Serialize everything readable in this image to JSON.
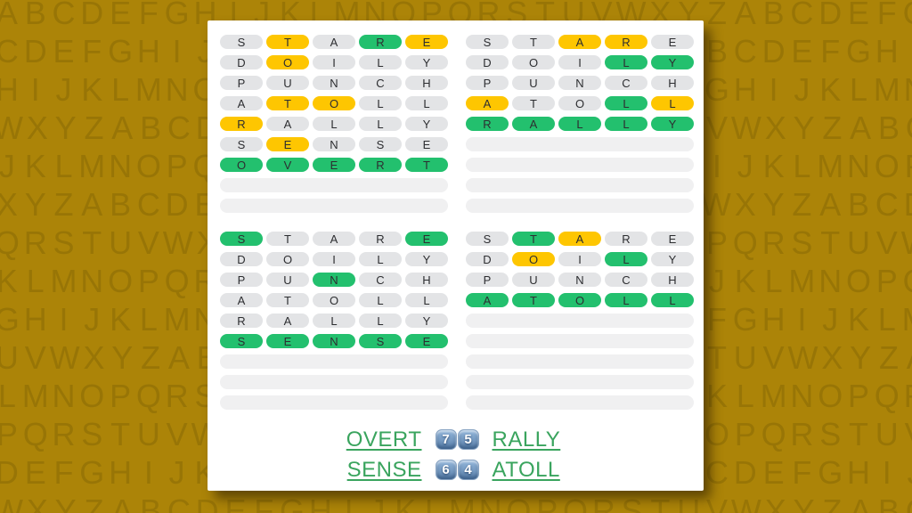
{
  "colors": {
    "page_bg": "#ac8408",
    "bg_letter": "rgba(50,45,0,0.16)",
    "card_bg": "#ffffff",
    "tile_absent_bg": "#e3e4e6",
    "tile_present_bg": "#fec601",
    "tile_correct_bg": "#23c06e",
    "tile_letter": "#2d2e31",
    "empty_row_bg": "#f0f0f1",
    "link_green": "#3aa45e",
    "keycap_blue_top": "#93b6da",
    "keycap_blue_bottom": "#5d83ad",
    "keycap_number": "#ffffff"
  },
  "background_letter_rows": [
    "ABCDEFGHIJKLMNOPQRSTUVWXYZABCDEFG",
    "CDEFGHIJKLMNOPQRSTUVWXYZABCDEFGHI",
    "HIJKLMNOPQRSTUVWXYZABCDEFGHIJKLMN",
    "WXYZABCDEFGHIJKLMNOPQRSTUVWXYZABC",
    "JKLMNOPQRSTUVWXYZABCDEFGHIJKLMNOP",
    "XYZABCDEFGHIJKLMNOPQRSTUVWXYZABCD",
    "QRSTUVWXYZABCDEFGHIJKLMNOPQRSTUVW",
    "KLMNOPQRSTUVWXYZABCDEFGHIJKLMNOPQ",
    "GHIJKLMNOPQRSTUVWXYZABCDEFGHIJKLM",
    "UVWXYZABCDEFGHIJKLMNOPQRSTUVWXYZA",
    "LMNOPQRSTUVWXYZABCDEFGHIJKLMNOPQR",
    "PQRSTUVWXYZABCDEFGHIJKLMNOPQRSTUV",
    "DEFGHIJKLMNOPQRSTUVWXYZABCDEFGHIJ",
    "WXYZABCDEFGHIJKLMNOPQRSTUVWXYZABC"
  ],
  "grids": [
    {
      "id": "top-left",
      "total_rows": 9,
      "guesses": [
        {
          "word": "STARE",
          "states": "apacp"
        },
        {
          "word": "DOILY",
          "states": "apaaa"
        },
        {
          "word": "PUNCH",
          "states": "aaaaa"
        },
        {
          "word": "ATOLL",
          "states": "appaa"
        },
        {
          "word": "RALLY",
          "states": "paaaa"
        },
        {
          "word": "SENSE",
          "states": "apaaa"
        },
        {
          "word": "OVERT",
          "states": "ccccc"
        }
      ],
      "empty_rows": 2
    },
    {
      "id": "top-right",
      "total_rows": 9,
      "guesses": [
        {
          "word": "STARE",
          "states": "aappa"
        },
        {
          "word": "DOILY",
          "states": "aaacc"
        },
        {
          "word": "PUNCH",
          "states": "aaaaa"
        },
        {
          "word": "ATOLL",
          "states": "paacp"
        },
        {
          "word": "RALLY",
          "states": "ccccc"
        }
      ],
      "empty_rows": 4
    },
    {
      "id": "bottom-left",
      "total_rows": 9,
      "guesses": [
        {
          "word": "STARE",
          "states": "caaac"
        },
        {
          "word": "DOILY",
          "states": "aaaaa"
        },
        {
          "word": "PUNCH",
          "states": "aacaa"
        },
        {
          "word": "ATOLL",
          "states": "aaaaa"
        },
        {
          "word": "RALLY",
          "states": "aaaaa"
        },
        {
          "word": "SENSE",
          "states": "ccccc"
        }
      ],
      "empty_rows": 3
    },
    {
      "id": "bottom-right",
      "total_rows": 9,
      "guesses": [
        {
          "word": "STARE",
          "states": "acpaa"
        },
        {
          "word": "DOILY",
          "states": "apaca"
        },
        {
          "word": "PUNCH",
          "states": "aaaaa"
        },
        {
          "word": "ATOLL",
          "states": "ccccc"
        }
      ],
      "empty_rows": 5
    }
  ],
  "summary": {
    "rows": [
      {
        "left_word": "OVERT",
        "keycaps": [
          "7",
          "5"
        ],
        "right_word": "RALLY"
      },
      {
        "left_word": "SENSE",
        "keycaps": [
          "6",
          "4"
        ],
        "right_word": "ATOLL"
      }
    ]
  }
}
